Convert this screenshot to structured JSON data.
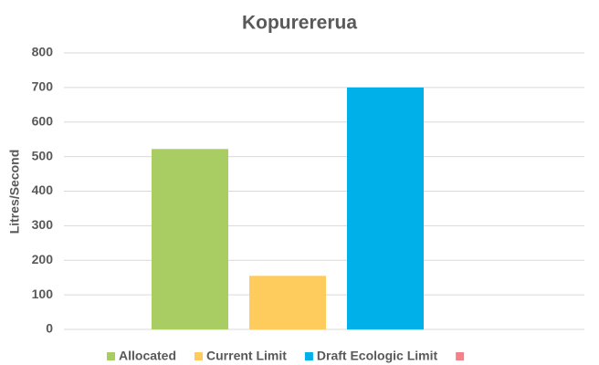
{
  "chart_data": {
    "type": "bar",
    "title": "Kopurererua",
    "y_label": "Litres/Second",
    "categories": [
      null
    ],
    "series": [
      {
        "name": "Allocated",
        "color": "#a9cd62",
        "values": [
          522
        ]
      },
      {
        "name": "Current Limit",
        "color": "#fdcc5c",
        "values": [
          155
        ]
      },
      {
        "name": "Draft Ecologic Limit",
        "color": "#00b0e8",
        "values": [
          700
        ]
      },
      {
        "name": null,
        "color": "#f4808a",
        "values": [
          null
        ]
      }
    ],
    "ylim": [
      0,
      800
    ],
    "yticks": [
      0,
      100,
      200,
      300,
      400,
      500,
      600,
      700,
      800
    ],
    "grid": true,
    "legend": "bottom"
  }
}
